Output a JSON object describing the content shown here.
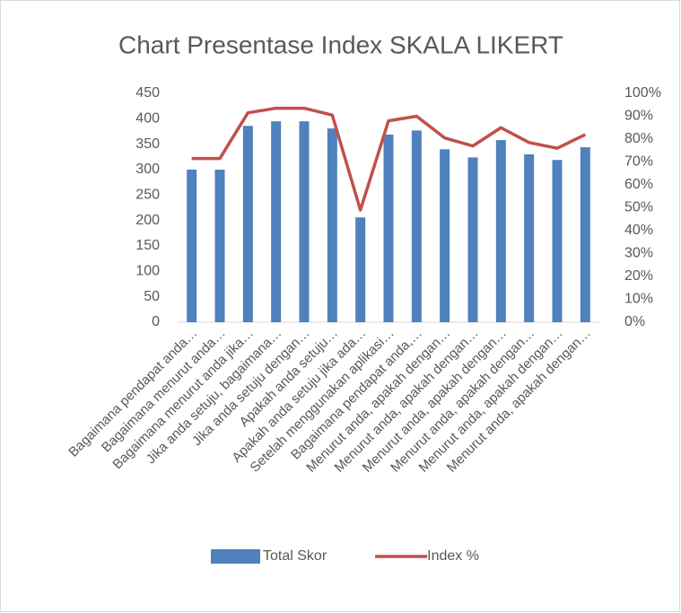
{
  "chart_data": {
    "type": "bar",
    "title": "Chart Presentase Index SKALA LIKERT",
    "categories": [
      "Bagaimana pendapat anda…",
      "Bagaimana menurut anda…",
      "Bagaimana menurut anda jika…",
      "Jika anda setuju, bagaimana…",
      "Jika anda setuju dengan…",
      "Apakah anda setuju…",
      "Apakah anda setuju jika ada…",
      "Setelah menggunakan aplikasi…",
      "Bagaimana pendapat anda,…",
      "Menurut anda, apakah dengan…",
      "Menurut anda, apakah dengan…",
      "Menurut anda, apakah dengan…",
      "Menurut anda, apakah dengan…",
      "Menurut anda, apakah dengan…",
      "Menurut anda, apakah dengan…"
    ],
    "series": [
      {
        "name": "Total Skor",
        "type": "bar",
        "color": "#4f81bd",
        "values": [
          300,
          300,
          386,
          395,
          395,
          381,
          206,
          369,
          377,
          340,
          324,
          358,
          330,
          319,
          344
        ]
      },
      {
        "name": "Index %",
        "type": "line",
        "axis": "y2",
        "color": "#c0504d",
        "values": [
          71.5,
          71.5,
          91.5,
          93.5,
          93.5,
          90.5,
          49,
          88,
          90,
          80.5,
          77,
          85,
          78.5,
          76,
          82
        ]
      }
    ],
    "ylim": [
      0,
      450
    ],
    "yticks": [
      0,
      50,
      100,
      150,
      200,
      250,
      300,
      350,
      400,
      450
    ],
    "y2lim": [
      0,
      100
    ],
    "y2ticks": [
      {
        "value": 0,
        "label": "0%"
      },
      {
        "value": 10,
        "label": "10%"
      },
      {
        "value": 20,
        "label": "20%"
      },
      {
        "value": 30,
        "label": "30%"
      },
      {
        "value": 40,
        "label": "40%"
      },
      {
        "value": 50,
        "label": "50%"
      },
      {
        "value": 60,
        "label": "60%"
      },
      {
        "value": 70,
        "label": "70%"
      },
      {
        "value": 80,
        "label": "80%"
      },
      {
        "value": 90,
        "label": "90%"
      },
      {
        "value": 100,
        "label": "100%"
      }
    ],
    "legend": "bottom"
  }
}
